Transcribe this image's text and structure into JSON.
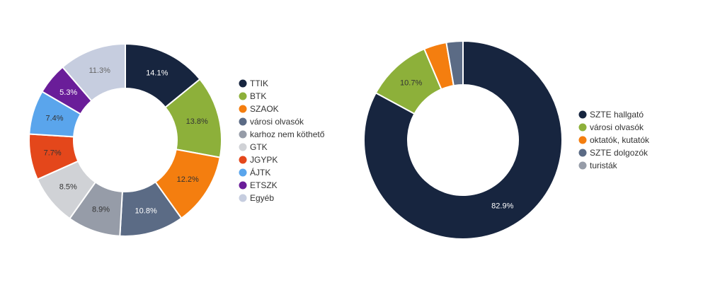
{
  "chart_data": [
    {
      "type": "pie",
      "donut": true,
      "legend_position": "right",
      "slices": [
        {
          "name": "TTIK",
          "value": 14.1,
          "label": "14.1%",
          "color": "#17253f",
          "label_color": "#ffffff"
        },
        {
          "name": "BTK",
          "value": 13.8,
          "label": "13.8%",
          "color": "#8db03a",
          "label_color": "#333333"
        },
        {
          "name": "SZAOK",
          "value": 12.2,
          "label": "12.2%",
          "color": "#f47e0f",
          "label_color": "#333333"
        },
        {
          "name": "városi olvasók",
          "value": 10.8,
          "label": "10.8%",
          "color": "#5b6b85",
          "label_color": "#ffffff"
        },
        {
          "name": "karhoz nem köthető",
          "value": 8.9,
          "label": "8.9%",
          "color": "#969ca8",
          "label_color": "#333333"
        },
        {
          "name": "GTK",
          "value": 8.5,
          "label": "8.5%",
          "color": "#d0d2d6",
          "label_color": "#333333"
        },
        {
          "name": "JGYPK",
          "value": 7.7,
          "label": "7.7%",
          "color": "#e4471b",
          "label_color": "#333333"
        },
        {
          "name": "ÁJTK",
          "value": 7.4,
          "label": "7.4%",
          "color": "#5aa5ec",
          "label_color": "#333333"
        },
        {
          "name": "ETSZK",
          "value": 5.3,
          "label": "5.3%",
          "color": "#6a1d99",
          "label_color": "#ffffff"
        },
        {
          "name": "Egyéb",
          "value": 11.3,
          "label": "11.3%",
          "color": "#c6cddf",
          "label_color": "#666666"
        }
      ]
    },
    {
      "type": "pie",
      "donut": true,
      "legend_position": "right",
      "slices": [
        {
          "name": "SZTE hallgató",
          "value": 82.9,
          "label": "82.9%",
          "color": "#17253f",
          "label_color": "#ffffff"
        },
        {
          "name": "városi olvasók",
          "value": 10.7,
          "label": "10.7%",
          "color": "#8db03a",
          "label_color": "#333333"
        },
        {
          "name": "oktatók, kutatók",
          "value": 3.7,
          "label": "",
          "color": "#f47e0f",
          "label_color": "#333333"
        },
        {
          "name": "SZTE dolgozók",
          "value": 2.7,
          "label": "",
          "color": "#5b6b85",
          "label_color": "#ffffff"
        },
        {
          "name": "turisták",
          "value": 0.0,
          "label": "",
          "color": "#969ca8",
          "label_color": "#333333"
        }
      ]
    }
  ]
}
